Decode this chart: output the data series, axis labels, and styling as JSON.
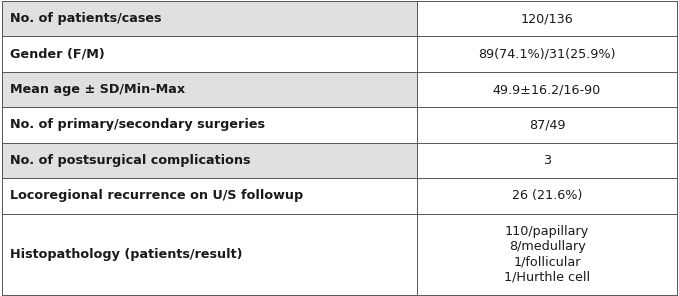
{
  "rows": [
    {
      "label": "No. of patients/cases",
      "value": "120/136",
      "label_bg": "#e0e0e0",
      "value_bg": "#ffffff"
    },
    {
      "label": "Gender (F/M)",
      "value": "89(74.1%)/31(25.9%)",
      "label_bg": "#ffffff",
      "value_bg": "#ffffff"
    },
    {
      "label": "Mean age ± SD/Min-Max",
      "value": "49.9±16.2/16-90",
      "label_bg": "#e0e0e0",
      "value_bg": "#ffffff"
    },
    {
      "label": "No. of primary/secondary surgeries",
      "value": "87/49",
      "label_bg": "#ffffff",
      "value_bg": "#ffffff"
    },
    {
      "label": "No. of postsurgical complications",
      "value": "3",
      "label_bg": "#e0e0e0",
      "value_bg": "#ffffff"
    },
    {
      "label": "Locoregional recurrence on U/S followup",
      "value": "26 (21.6%)",
      "label_bg": "#ffffff",
      "value_bg": "#ffffff"
    },
    {
      "label": "Histopathology (patients/result)",
      "value": "110/papillary\n8/medullary\n1/follicular\n1/Hurthle cell",
      "label_bg": "#ffffff",
      "value_bg": "#ffffff"
    }
  ],
  "col_split": 0.615,
  "border_color": "#555555",
  "label_fontsize": 9.2,
  "value_fontsize": 9.2,
  "text_color": "#1a1a1a",
  "row_heights": [
    1,
    1,
    1,
    1,
    1,
    1,
    2.3
  ],
  "fig_width": 6.79,
  "fig_height": 2.96,
  "dpi": 100
}
